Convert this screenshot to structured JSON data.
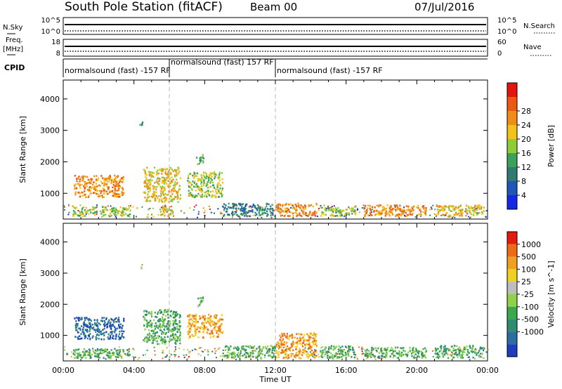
{
  "header": {
    "station": "South Pole Station (fitACF)",
    "beam": "Beam 00",
    "date": "07/Jul/2016"
  },
  "nsky": {
    "label": "N.Sky",
    "ticks_left": [
      "10^5",
      "10^0"
    ],
    "ticks_right": [
      "10^5",
      "10^0"
    ],
    "right_label": "N.Search"
  },
  "freq": {
    "label_lines": [
      "Freq.",
      "[MHz]"
    ],
    "ticks_left": [
      "18",
      "8"
    ],
    "ticks_right": [
      "60",
      "0"
    ],
    "right_label": "Nave"
  },
  "cpid": {
    "label": "CPID",
    "segments": [
      {
        "start_h": 0,
        "end_h": 6,
        "text": "normalsound (fast) -157 RF"
      },
      {
        "start_h": 6,
        "end_h": 12,
        "text": "normalsound (fast) 157 RF"
      },
      {
        "start_h": 12,
        "end_h": 24,
        "text": "normalsound (fast) -157 RF"
      }
    ]
  },
  "chart_data": [
    {
      "type": "heatmap",
      "name": "power",
      "ylabel": "Slant Range [km]",
      "yticks": [
        1000,
        2000,
        3000,
        4000
      ],
      "ylim": [
        180,
        4600
      ],
      "xlim": [
        0,
        24
      ],
      "xlabel": "",
      "colorbar": {
        "label": "Power [dB]",
        "ticks": [
          "4",
          "8",
          "12",
          "16",
          "20",
          "24",
          "28"
        ],
        "colors": [
          "#1428e6",
          "#1f57b9",
          "#2f7b73",
          "#3aa05a",
          "#8fcc3a",
          "#f2c21a",
          "#f08c18",
          "#ea5a12",
          "#e4140e"
        ]
      },
      "blobs": [
        {
          "t0": 0.5,
          "t1": 3.8,
          "r0": 300,
          "r1": 600,
          "level": 4
        },
        {
          "t0": 0.6,
          "t1": 3.4,
          "r0": 900,
          "r1": 1600,
          "level": 6
        },
        {
          "t0": 4.5,
          "t1": 6.6,
          "r0": 750,
          "r1": 1850,
          "level": 5
        },
        {
          "t0": 5.4,
          "t1": 6.2,
          "r0": 300,
          "r1": 600,
          "level": 5
        },
        {
          "t0": 7.0,
          "t1": 9.0,
          "r0": 900,
          "r1": 1700,
          "level": 4
        },
        {
          "t0": 7.5,
          "t1": 7.9,
          "r0": 1950,
          "r1": 2250,
          "level": 3
        },
        {
          "t0": 4.3,
          "t1": 4.5,
          "r0": 3150,
          "r1": 3300,
          "level": 2
        },
        {
          "t0": 9.0,
          "t1": 12.0,
          "r0": 300,
          "r1": 700,
          "level": 2
        },
        {
          "t0": 12.0,
          "t1": 14.3,
          "r0": 300,
          "r1": 700,
          "level": 6
        },
        {
          "t0": 14.5,
          "t1": 16.5,
          "r0": 300,
          "r1": 600,
          "level": 4
        },
        {
          "t0": 17.0,
          "t1": 20.5,
          "r0": 300,
          "r1": 650,
          "level": 6
        },
        {
          "t0": 21.0,
          "t1": 23.8,
          "r0": 300,
          "r1": 650,
          "level": 5
        }
      ]
    },
    {
      "type": "heatmap",
      "name": "velocity",
      "ylabel": "Slant Range [km]",
      "yticks": [
        1000,
        2000,
        3000,
        4000
      ],
      "ylim": [
        180,
        4600
      ],
      "xlim": [
        0,
        24
      ],
      "xticks": [
        "00:00",
        "04:00",
        "08:00",
        "12:00",
        "16:00",
        "20:00",
        "00:00"
      ],
      "xlabel": "Time UT",
      "colorbar": {
        "label": "Velocity [m s^-1]",
        "ticks": [
          "1000",
          "500",
          "100",
          "25",
          "-25",
          "-100",
          "-500",
          "-1000"
        ],
        "colors": [
          "#1e3cbe",
          "#2d6e9e",
          "#2f8c6e",
          "#3aa84c",
          "#8fd24a",
          "#bdbdbd",
          "#f0d020",
          "#f0a020",
          "#ec6a14",
          "#e41a10"
        ]
      },
      "blobs": [
        {
          "t0": 0.5,
          "t1": 3.8,
          "r0": 300,
          "r1": 600,
          "level": 3
        },
        {
          "t0": 0.6,
          "t1": 3.4,
          "r0": 900,
          "r1": 1600,
          "level": 1
        },
        {
          "t0": 4.5,
          "t1": 6.6,
          "r0": 750,
          "r1": 1850,
          "level": 3
        },
        {
          "t0": 7.0,
          "t1": 9.0,
          "r0": 950,
          "r1": 1700,
          "level": 7
        },
        {
          "t0": 7.5,
          "t1": 7.9,
          "r0": 1950,
          "r1": 2250,
          "level": 4
        },
        {
          "t0": 4.3,
          "t1": 4.5,
          "r0": 3150,
          "r1": 3300,
          "level": 5
        },
        {
          "t0": 9.0,
          "t1": 12.0,
          "r0": 300,
          "r1": 700,
          "level": 3
        },
        {
          "t0": 12.0,
          "t1": 14.3,
          "r0": 300,
          "r1": 1100,
          "level": 7
        },
        {
          "t0": 14.5,
          "t1": 16.5,
          "r0": 300,
          "r1": 700,
          "level": 3
        },
        {
          "t0": 17.0,
          "t1": 20.5,
          "r0": 300,
          "r1": 650,
          "level": 3
        },
        {
          "t0": 21.0,
          "t1": 23.8,
          "r0": 300,
          "r1": 700,
          "level": 3
        }
      ]
    }
  ]
}
